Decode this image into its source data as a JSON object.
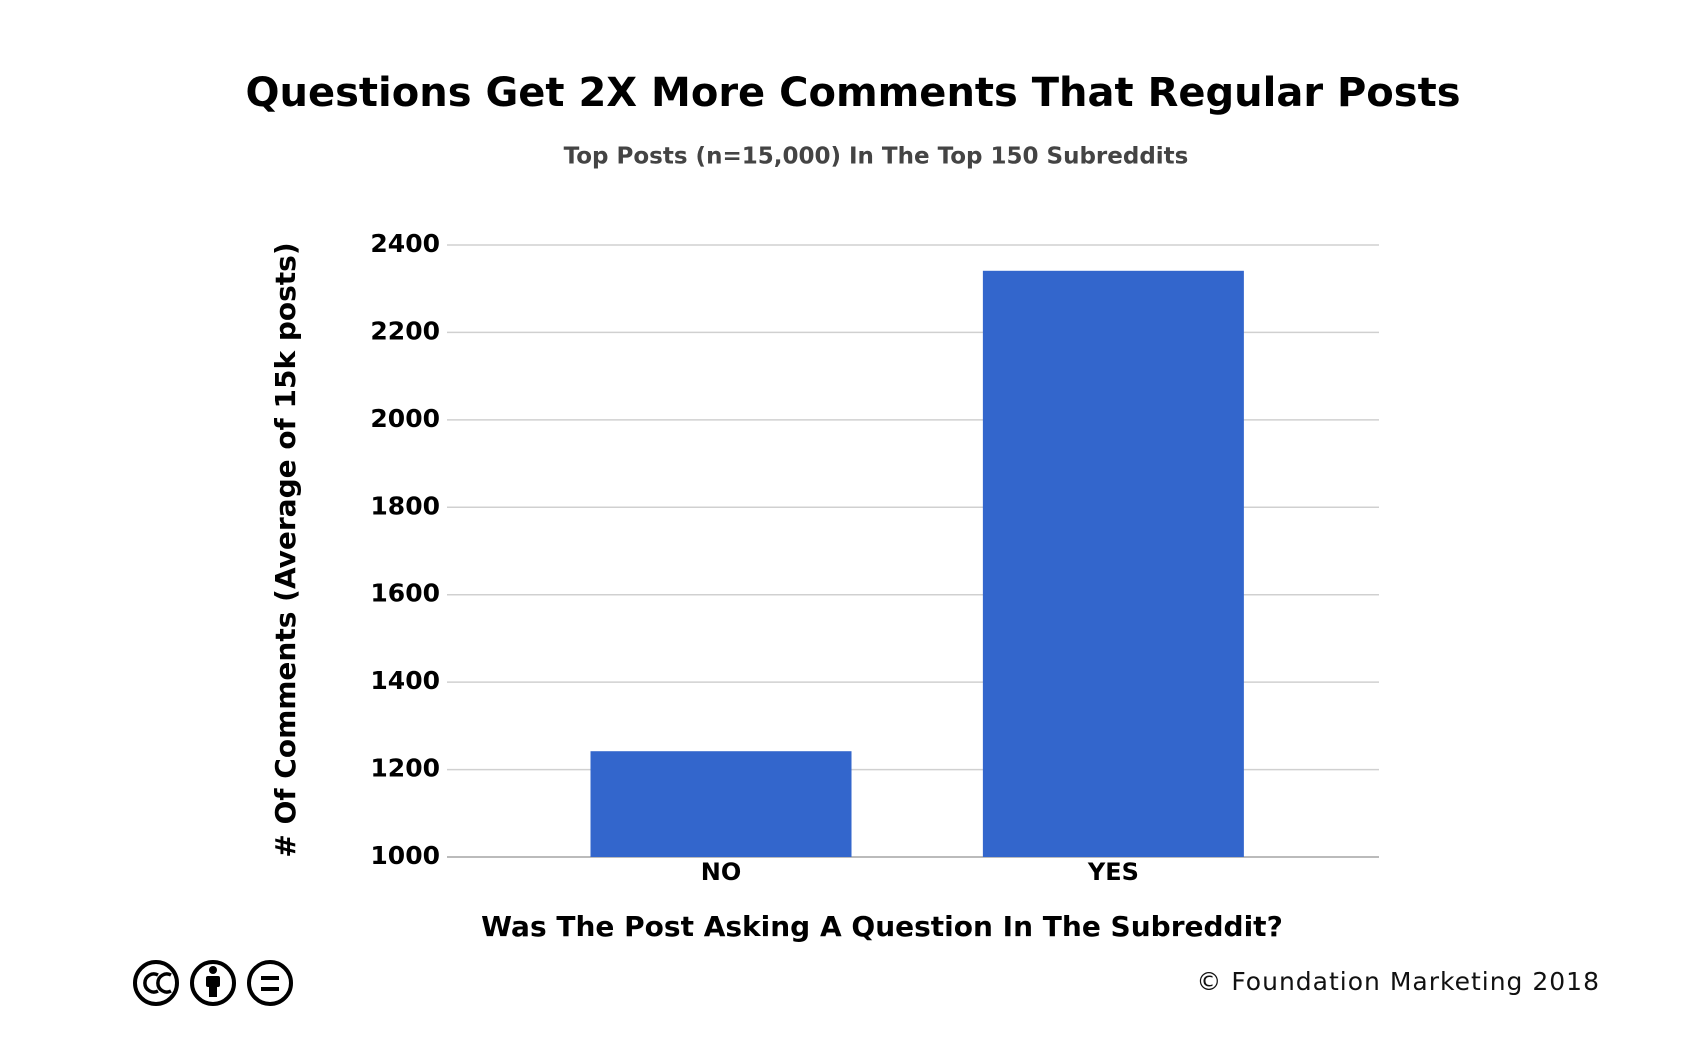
{
  "chart_data": {
    "type": "bar",
    "title": "Questions Get 2X More Comments That Regular Posts",
    "subtitle": "Top Posts (n=15,000) In The Top 150 Subreddits",
    "y_label": "# Of Comments (Average of 15k posts)",
    "x_label": "Was The Post Asking A Question In The Subreddit?",
    "categories": [
      "NO",
      "YES"
    ],
    "values": [
      1242,
      2341
    ],
    "color": "#3366cc",
    "ylim": [
      1000,
      2400
    ],
    "yticks": [
      1000,
      1200,
      1400,
      1600,
      1800,
      2000,
      2200,
      2400
    ],
    "grid": true,
    "credit": "© Foundation Marketing 2018"
  }
}
